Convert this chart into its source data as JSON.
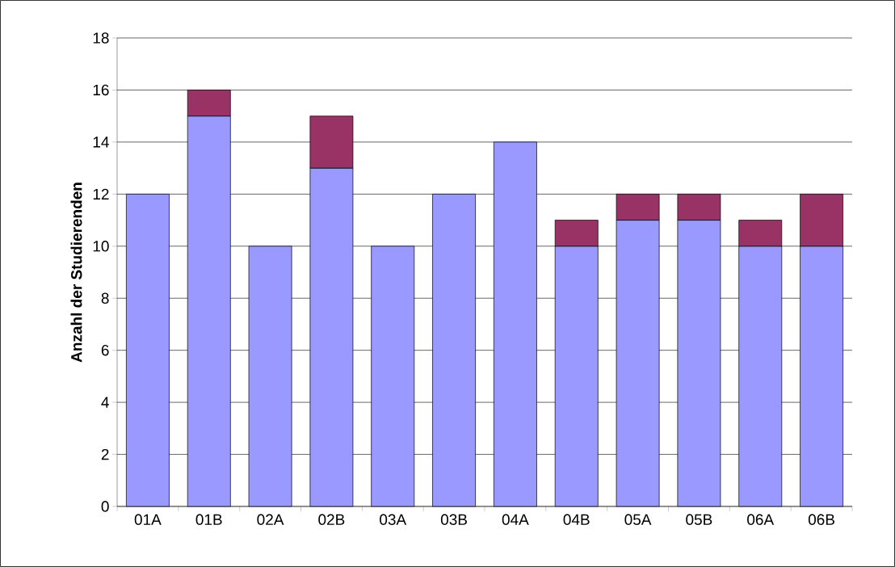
{
  "chart_data": {
    "type": "bar",
    "stacked": true,
    "ylabel": "Anzahl der Studierenden",
    "categories": [
      "01A",
      "01B",
      "02A",
      "02B",
      "03A",
      "03B",
      "04A",
      "04B",
      "05A",
      "05B",
      "06A",
      "06B"
    ],
    "series": [
      {
        "color": "#9999ff",
        "values": [
          12,
          15,
          10,
          13,
          10,
          12,
          14,
          10,
          11,
          11,
          10,
          10
        ]
      },
      {
        "color": "#993366",
        "values": [
          null,
          1,
          null,
          2,
          null,
          null,
          null,
          1,
          1,
          1,
          1,
          2
        ]
      }
    ],
    "ylim": [
      0,
      18
    ],
    "yticks": [
      0,
      2,
      4,
      6,
      8,
      10,
      12,
      14,
      16,
      18
    ],
    "grid": "y"
  }
}
